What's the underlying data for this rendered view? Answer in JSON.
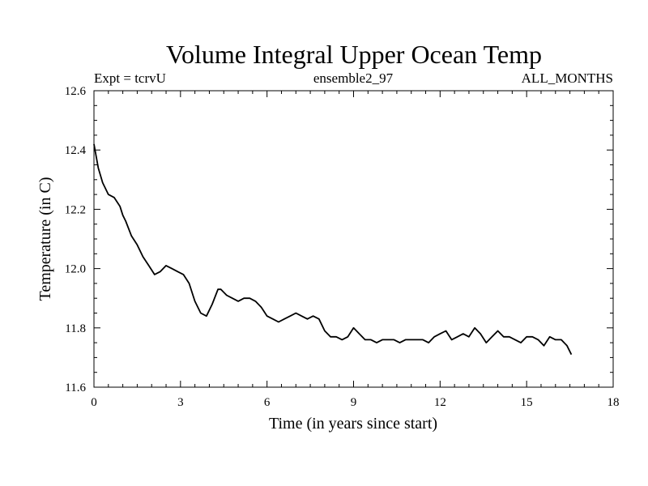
{
  "chart_data": {
    "type": "line",
    "title": "Volume Integral Upper Ocean Temp",
    "subtitle_left": "Expt = tcrvU",
    "subtitle_center": "ensemble2_97",
    "subtitle_right": "ALL_MONTHS",
    "xlabel": "Time (in years since start)",
    "ylabel": "Temperature (in C)",
    "xlim": [
      0,
      18
    ],
    "ylim": [
      11.6,
      12.6
    ],
    "xticks": [
      0,
      3,
      6,
      9,
      12,
      15,
      18
    ],
    "yticks": [
      11.6,
      11.8,
      12.0,
      12.2,
      12.4,
      12.6
    ],
    "x_tick_labels": [
      "0",
      "3",
      "6",
      "9",
      "12",
      "15",
      "18"
    ],
    "y_tick_labels": [
      "11.6",
      "11.8",
      "12.0",
      "12.2",
      "12.4",
      "12.6"
    ],
    "x_minor_step": 0.5,
    "y_minor_step": 0.05,
    "grid": false,
    "line_color": "#000000",
    "series": [
      {
        "name": "Temperature",
        "x": [
          0,
          0.15,
          0.3,
          0.5,
          0.7,
          0.9,
          1.0,
          1.1,
          1.3,
          1.5,
          1.7,
          1.9,
          2.1,
          2.3,
          2.5,
          2.7,
          2.9,
          3.1,
          3.3,
          3.5,
          3.7,
          3.9,
          4.1,
          4.3,
          4.4,
          4.6,
          4.8,
          5.0,
          5.2,
          5.4,
          5.6,
          5.8,
          6.0,
          6.2,
          6.4,
          6.6,
          6.8,
          7.0,
          7.2,
          7.4,
          7.6,
          7.8,
          8.0,
          8.2,
          8.4,
          8.6,
          8.8,
          9.0,
          9.2,
          9.4,
          9.6,
          9.8,
          10.0,
          10.2,
          10.4,
          10.6,
          10.8,
          11.0,
          11.2,
          11.4,
          11.6,
          11.8,
          12.0,
          12.2,
          12.4,
          12.6,
          12.8,
          13.0,
          13.2,
          13.4,
          13.6,
          13.8,
          14.0,
          14.2,
          14.4,
          14.6,
          14.8,
          15.0,
          15.2,
          15.4,
          15.6,
          15.8,
          16.0,
          16.2,
          16.4,
          16.55
        ],
        "values": [
          12.42,
          12.34,
          12.29,
          12.25,
          12.24,
          12.21,
          12.18,
          12.16,
          12.11,
          12.08,
          12.04,
          12.01,
          11.98,
          11.99,
          12.01,
          12.0,
          11.99,
          11.98,
          11.95,
          11.89,
          11.85,
          11.84,
          11.88,
          11.93,
          11.93,
          11.91,
          11.9,
          11.89,
          11.9,
          11.9,
          11.89,
          11.87,
          11.84,
          11.83,
          11.82,
          11.83,
          11.84,
          11.85,
          11.84,
          11.83,
          11.84,
          11.83,
          11.79,
          11.77,
          11.77,
          11.76,
          11.77,
          11.8,
          11.78,
          11.76,
          11.76,
          11.75,
          11.76,
          11.76,
          11.76,
          11.75,
          11.76,
          11.76,
          11.76,
          11.76,
          11.75,
          11.77,
          11.78,
          11.79,
          11.76,
          11.77,
          11.78,
          11.77,
          11.8,
          11.78,
          11.75,
          11.77,
          11.79,
          11.77,
          11.77,
          11.76,
          11.75,
          11.77,
          11.77,
          11.76,
          11.74,
          11.77,
          11.76,
          11.76,
          11.74,
          11.71
        ]
      }
    ]
  }
}
